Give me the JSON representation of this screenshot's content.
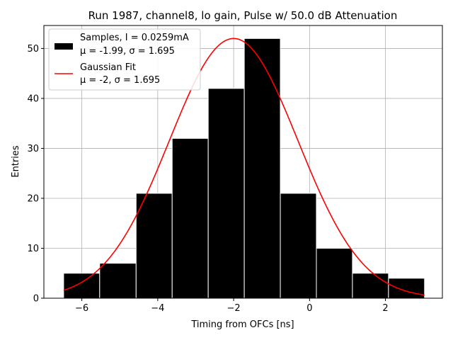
{
  "chart_data": {
    "type": "bar",
    "title": "Run 1987, channel8, lo gain, Pulse w/ 50.0 dB Attenuation",
    "xlabel": "Timing from OFCs [ns]",
    "ylabel": "Entries",
    "xlim": [
      -7.0,
      3.5
    ],
    "ylim": [
      0,
      54.6
    ],
    "xticks": [
      -6,
      -4,
      -2,
      0,
      2
    ],
    "xtick_labels": [
      "−6",
      "−4",
      "−2",
      "0",
      "2"
    ],
    "yticks": [
      0,
      10,
      20,
      30,
      40,
      50
    ],
    "ytick_labels": [
      "0",
      "10",
      "20",
      "30",
      "40",
      "50"
    ],
    "grid": true,
    "legend_position": "upper-left",
    "histogram": {
      "bin_edges": [
        -6.48,
        -5.53,
        -4.57,
        -3.62,
        -2.67,
        -1.72,
        -0.77,
        0.18,
        1.13,
        2.08,
        3.03
      ],
      "counts": [
        5,
        7,
        21,
        32,
        42,
        52,
        21,
        10,
        5,
        4
      ],
      "color": "#000000",
      "edgecolor": "#ffffff",
      "legend_line1": "Samples, I = 0.0259mA",
      "legend_line2": "μ = -1.99, σ = 1.695"
    },
    "fit": {
      "type": "gaussian",
      "mu": -2.0,
      "sigma": 1.695,
      "amplitude": 52.0,
      "x_range": [
        -6.48,
        3.03
      ],
      "color": "#ff0000",
      "legend_line1": "Gaussian Fit",
      "legend_line2": "μ = -2, σ = 1.695"
    }
  }
}
